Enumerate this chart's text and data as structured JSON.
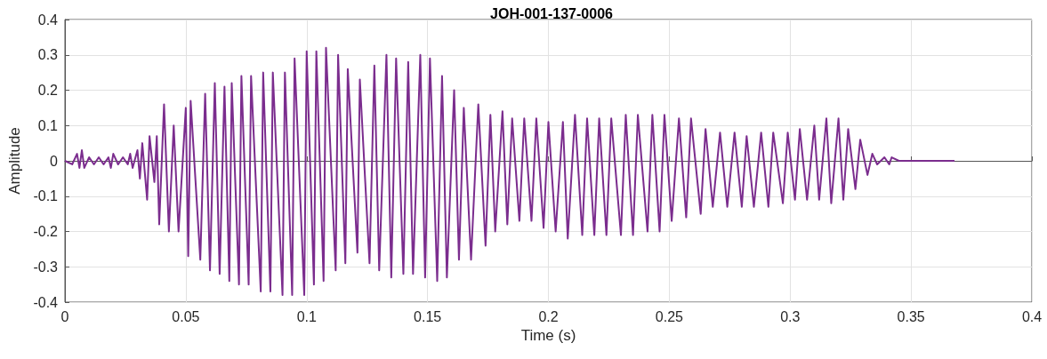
{
  "chart_data": {
    "type": "line",
    "title": "JOH-001-137-0006",
    "xlabel": "Time (s)",
    "ylabel": "Amplitude",
    "xlim": [
      0,
      0.4
    ],
    "xticks": [
      0,
      0.05,
      0.1,
      0.15,
      0.2,
      0.25,
      0.3,
      0.35,
      0.4
    ],
    "ylim": [
      -0.4,
      0.4
    ],
    "yticks": [
      -0.4,
      -0.3,
      -0.2,
      -0.1,
      0,
      0.1,
      0.2,
      0.3,
      0.4
    ],
    "grid": true,
    "marker": "none",
    "line_style": "solid",
    "series": [
      {
        "color": "#7b2d8e",
        "x": [
          0,
          0.003,
          0.005,
          0.006,
          0.007,
          0.008,
          0.01,
          0.012,
          0.014,
          0.016,
          0.018,
          0.019,
          0.02,
          0.022,
          0.024,
          0.026,
          0.027,
          0.028,
          0.03,
          0.031,
          0.032,
          0.034,
          0.035,
          0.037,
          0.038,
          0.039,
          0.041,
          0.043,
          0.045,
          0.047,
          0.05,
          0.051,
          0.052,
          0.056,
          0.058,
          0.06,
          0.062,
          0.064,
          0.066,
          0.068,
          0.069,
          0.072,
          0.073,
          0.076,
          0.077,
          0.081,
          0.082,
          0.085,
          0.086,
          0.09,
          0.091,
          0.094,
          0.095,
          0.099,
          0.1,
          0.103,
          0.104,
          0.107,
          0.108,
          0.112,
          0.113,
          0.116,
          0.117,
          0.121,
          0.122,
          0.126,
          0.128,
          0.13,
          0.133,
          0.135,
          0.137,
          0.14,
          0.142,
          0.144,
          0.147,
          0.149,
          0.151,
          0.154,
          0.156,
          0.158,
          0.161,
          0.163,
          0.165,
          0.168,
          0.171,
          0.174,
          0.176,
          0.178,
          0.181,
          0.183,
          0.185,
          0.188,
          0.19,
          0.193,
          0.195,
          0.198,
          0.2,
          0.203,
          0.206,
          0.208,
          0.211,
          0.214,
          0.216,
          0.219,
          0.221,
          0.224,
          0.226,
          0.23,
          0.232,
          0.235,
          0.237,
          0.241,
          0.243,
          0.246,
          0.248,
          0.251,
          0.254,
          0.257,
          0.259,
          0.263,
          0.265,
          0.268,
          0.271,
          0.274,
          0.277,
          0.28,
          0.282,
          0.285,
          0.288,
          0.291,
          0.293,
          0.297,
          0.299,
          0.302,
          0.304,
          0.307,
          0.31,
          0.312,
          0.315,
          0.317,
          0.32,
          0.322,
          0.324,
          0.327,
          0.329,
          0.332,
          0.334,
          0.336,
          0.339,
          0.341,
          0.342,
          0.345,
          0.368
        ],
        "values": [
          0,
          -0.01,
          0.02,
          -0.02,
          0.03,
          -0.02,
          0.01,
          -0.01,
          0.01,
          -0.01,
          0.01,
          -0.02,
          0.02,
          -0.01,
          0.01,
          -0.01,
          0.02,
          -0.02,
          0.03,
          -0.05,
          0.05,
          -0.11,
          0.07,
          -0.06,
          0.07,
          -0.18,
          0.16,
          -0.2,
          0.1,
          -0.2,
          0.15,
          -0.27,
          0.17,
          -0.28,
          0.19,
          -0.31,
          0.22,
          -0.32,
          0.21,
          -0.34,
          0.22,
          -0.35,
          0.24,
          -0.35,
          0.24,
          -0.37,
          0.25,
          -0.37,
          0.25,
          -0.38,
          0.25,
          -0.38,
          0.29,
          -0.38,
          0.31,
          -0.35,
          0.31,
          -0.34,
          0.32,
          -0.31,
          0.3,
          -0.29,
          0.26,
          -0.26,
          0.23,
          -0.29,
          0.27,
          -0.31,
          0.3,
          -0.33,
          0.29,
          -0.32,
          0.28,
          -0.32,
          0.3,
          -0.33,
          0.29,
          -0.34,
          0.24,
          -0.33,
          0.2,
          -0.28,
          0.15,
          -0.28,
          0.16,
          -0.24,
          0.13,
          -0.2,
          0.14,
          -0.18,
          0.12,
          -0.17,
          0.12,
          -0.17,
          0.12,
          -0.19,
          0.11,
          -0.2,
          0.11,
          -0.22,
          0.13,
          -0.21,
          0.12,
          -0.21,
          0.12,
          -0.21,
          0.12,
          -0.21,
          0.13,
          -0.21,
          0.13,
          -0.2,
          0.13,
          -0.2,
          0.13,
          -0.17,
          0.12,
          -0.16,
          0.12,
          -0.15,
          0.09,
          -0.13,
          0.08,
          -0.13,
          0.08,
          -0.13,
          0.07,
          -0.13,
          0.08,
          -0.13,
          0.08,
          -0.12,
          0.08,
          -0.11,
          0.09,
          -0.11,
          0.1,
          -0.11,
          0.12,
          -0.12,
          0.12,
          -0.11,
          0.09,
          -0.08,
          0.06,
          -0.04,
          0.02,
          -0.01,
          0.01,
          -0.01,
          0.01,
          0,
          0
        ]
      }
    ]
  }
}
